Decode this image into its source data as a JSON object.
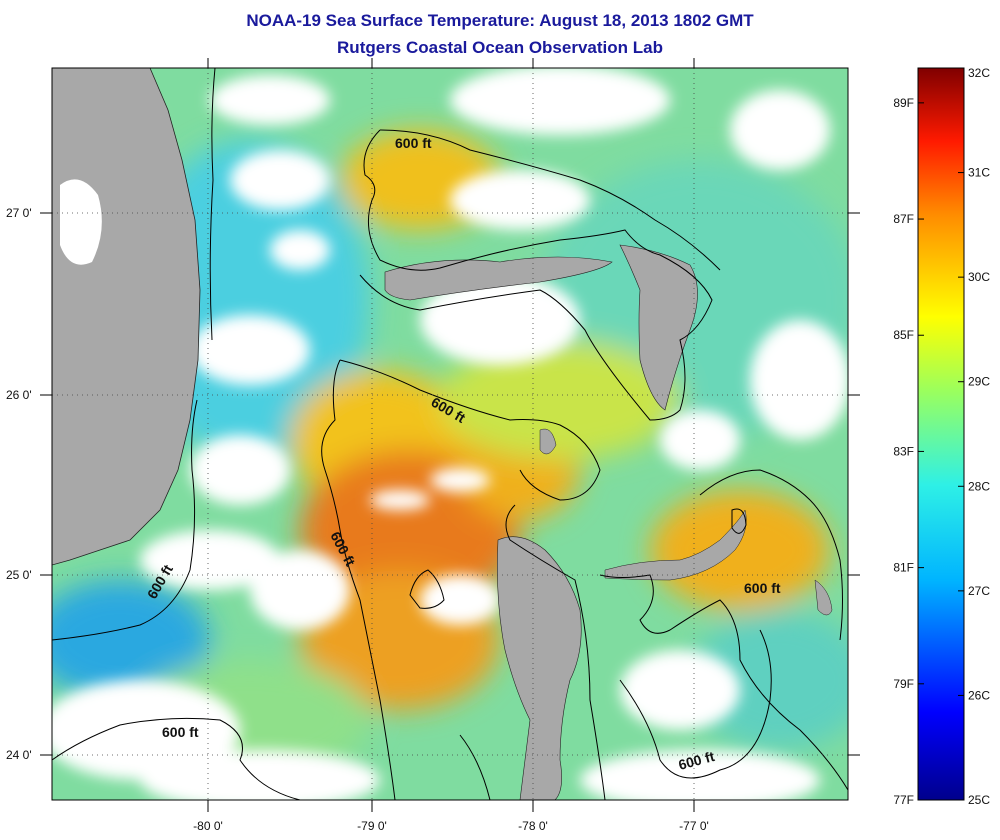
{
  "header": {
    "title": "NOAA-19 Sea Surface Temperature:  August 18, 2013 1802 GMT",
    "subtitle": "Rutgers Coastal Ocean Observation Lab"
  },
  "map": {
    "lat_ticks": [
      "27 0'",
      "26 0'",
      "25 0'",
      "24 0'"
    ],
    "lon_ticks": [
      "-80 0'",
      "-79 0'",
      "-78 0'",
      "-77 0'"
    ],
    "contour_label": "600 ft",
    "colors": {
      "land": "#a8a8a8",
      "cloud": "#ffffff",
      "cool": "#2aa8e0",
      "mid": "#5fd6a8",
      "warm": "#f2c21c",
      "hot": "#e8681a",
      "contour": "#000000"
    }
  },
  "colorbar": {
    "min_c": 25,
    "max_c": 32,
    "celsius_labels": [
      "32C",
      "31C",
      "30C",
      "29C",
      "28C",
      "27C",
      "26C",
      "25C"
    ],
    "fahrenheit_labels": [
      "89F",
      "87F",
      "85F",
      "83F",
      "81F",
      "79F",
      "77F"
    ]
  }
}
